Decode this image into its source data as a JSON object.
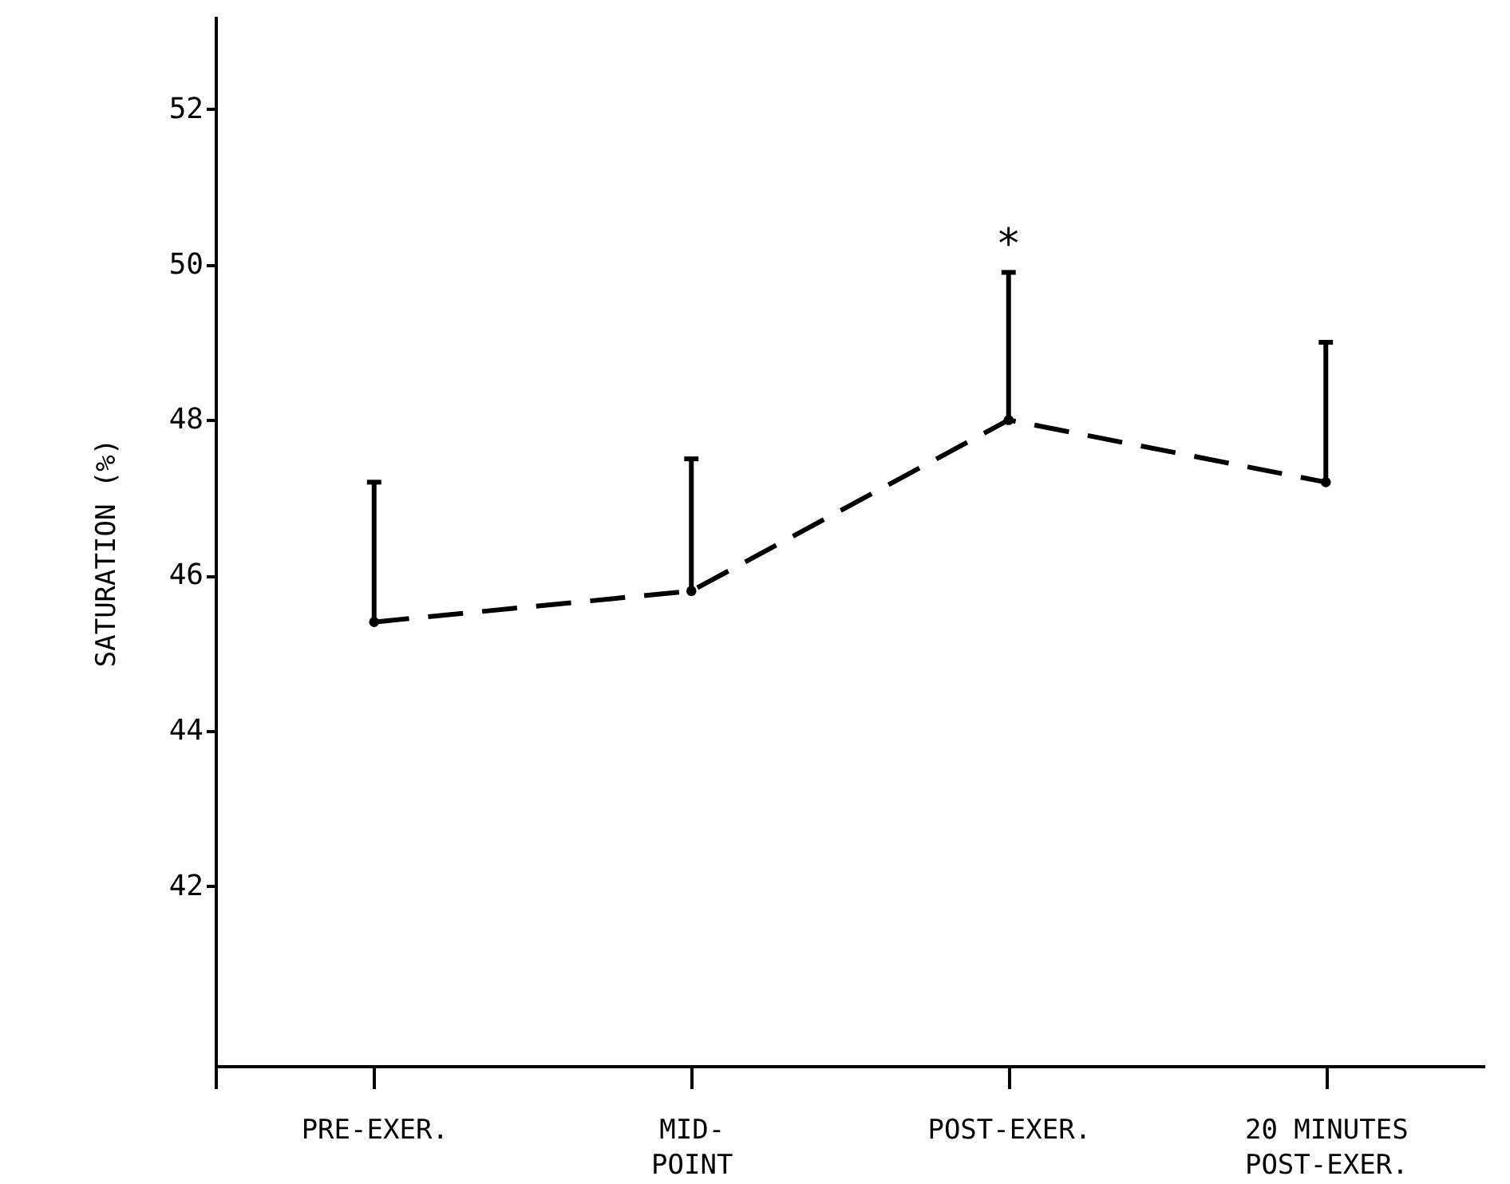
{
  "chart_data": {
    "type": "line",
    "ylabel": "SATURATION (%)",
    "categories": [
      "PRE-EXER.",
      "MID-\nPOINT",
      "POST-EXER.",
      "20 MINUTES\nPOST-EXER."
    ],
    "series": [
      {
        "color": "#000000",
        "values": [
          45.4,
          45.8,
          48.0,
          47.2
        ],
        "errors": [
          [
            45.4,
            47.2
          ],
          [
            45.8,
            47.5
          ],
          [
            48.0,
            49.9
          ],
          [
            47.2,
            49.0
          ]
        ]
      }
    ],
    "ylim": [
      39.4,
      53.2
    ],
    "yticks": [
      42,
      44,
      46,
      48,
      50,
      52
    ],
    "marker": "circle",
    "line_style": "dashed",
    "grid": false,
    "annotations": [
      {
        "text": "*",
        "x": "POST-EXER.",
        "y": 49.9
      }
    ]
  }
}
